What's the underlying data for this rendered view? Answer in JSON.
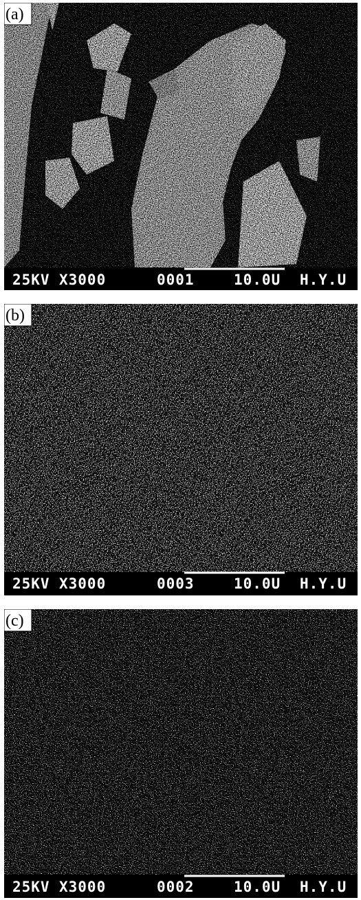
{
  "panels": [
    {
      "label": "(a)",
      "voltage": "25KV",
      "magnification": "X3000",
      "number": "0001",
      "scale": "10.0U",
      "lab": "H.Y.U"
    },
    {
      "label": "(b)",
      "voltage": "25KV",
      "magnification": "X3000",
      "number": "0003",
      "scale": "10.0U",
      "lab": "H.Y.U"
    },
    {
      "label": "(c)",
      "voltage": "25KV",
      "magnification": "X3000",
      "number": "0002",
      "scale": "10.0U",
      "lab": "H.Y.U"
    }
  ]
}
